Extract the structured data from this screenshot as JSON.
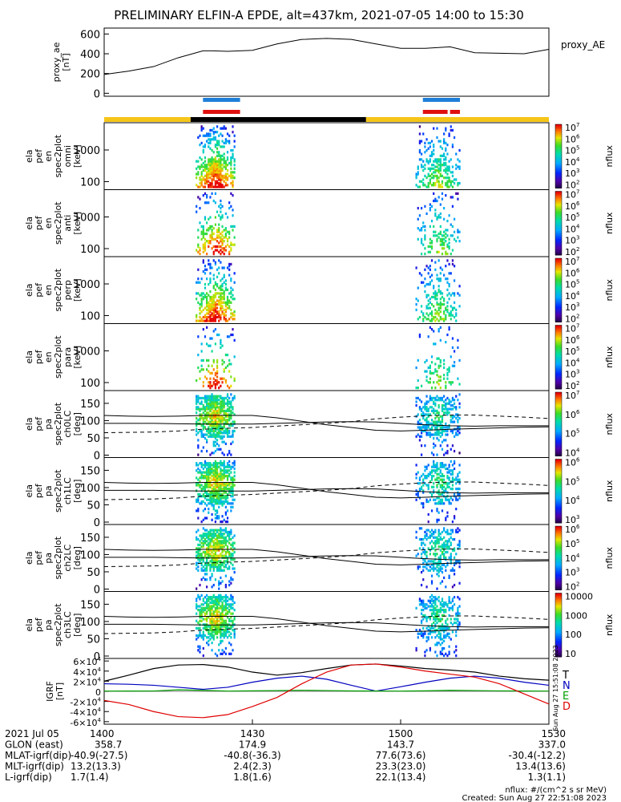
{
  "title": "PRELIMINARY ELFIN-A EPDE, alt=437km, 2021-07-05 14:00 to 15:30",
  "colors": {
    "sunlit": "#f5c518",
    "shadow": "#000000",
    "science_blue": "#1e7fd8",
    "science_red": "#e01010",
    "bx": "#e00000",
    "by": "#00a000",
    "bz": "#0000c0",
    "bt": "#000000"
  },
  "chart_data": [
    {
      "id": "proxy_ae",
      "type": "line",
      "ylabel": "proxy_ae\n[nT]",
      "yticks": [
        "0",
        "200",
        "400",
        "600"
      ],
      "ylim": [
        -30,
        660
      ],
      "legend": "proxy_AE",
      "x": [
        0,
        5,
        10,
        15,
        20,
        22,
        25,
        30,
        35,
        40,
        45,
        50,
        55,
        60,
        65,
        70,
        75,
        80,
        85,
        90
      ],
      "y": [
        190,
        225,
        270,
        360,
        430,
        430,
        425,
        435,
        500,
        545,
        555,
        545,
        500,
        455,
        455,
        470,
        410,
        405,
        400,
        445
      ]
    },
    {
      "id": "en_omni",
      "type": "heatmap",
      "axis": "en",
      "ylabel": "ela\npef\nen\nspec2plot\nomni\n[keV]",
      "yticks": [
        "100",
        "1000"
      ],
      "colorbar": {
        "label": "nflux",
        "ticks": [
          "10^2",
          "10^3",
          "10^4",
          "10^5",
          "10^6",
          "10^7"
        ]
      }
    },
    {
      "id": "en_anti",
      "type": "heatmap",
      "axis": "en",
      "ylabel": "ela\npef\nen\nspec2plot\nanti\n[keV]",
      "yticks": [
        "100",
        "1000"
      ],
      "colorbar": {
        "label": "nflux",
        "ticks": [
          "10^2",
          "10^3",
          "10^4",
          "10^5",
          "10^6",
          "10^7"
        ]
      }
    },
    {
      "id": "en_perp",
      "type": "heatmap",
      "axis": "en",
      "ylabel": "ela\npef\nen\nspec2plot\nperp\n[keV]",
      "yticks": [
        "100",
        "1000"
      ],
      "colorbar": {
        "label": "nflux",
        "ticks": [
          "10^2",
          "10^3",
          "10^4",
          "10^5",
          "10^6",
          "10^7"
        ]
      }
    },
    {
      "id": "en_para",
      "type": "heatmap",
      "axis": "en",
      "ylabel": "ela\npef\nen\nspec2plot\npara\n[keV]",
      "yticks": [
        "100",
        "1000"
      ],
      "colorbar": {
        "label": "nflux",
        "ticks": [
          "10^2",
          "10^3",
          "10^4",
          "10^5",
          "10^6",
          "10^7"
        ]
      }
    },
    {
      "id": "pa_ch0",
      "type": "heatmap",
      "axis": "pa",
      "ylabel": "ela\npef\npa\nspec2plot\nch0LC\n[deg]",
      "yticks": [
        "0",
        "50",
        "100",
        "150"
      ],
      "colorbar": {
        "label": "nflux",
        "ticks": [
          "10^4",
          "10^5",
          "10^6",
          "10^7"
        ]
      }
    },
    {
      "id": "pa_ch1",
      "type": "heatmap",
      "axis": "pa",
      "ylabel": "ela\npef\npa\nspec2plot\nch1LC\n[deg]",
      "yticks": [
        "0",
        "50",
        "100",
        "150"
      ],
      "colorbar": {
        "label": "nflux",
        "ticks": [
          "10^3",
          "10^4",
          "10^5",
          "10^6"
        ]
      }
    },
    {
      "id": "pa_ch2",
      "type": "heatmap",
      "axis": "pa",
      "ylabel": "ela\npef\npa\nspec2plot\nch2LC\n[deg]",
      "yticks": [
        "0",
        "50",
        "100",
        "150"
      ],
      "colorbar": {
        "label": "nflux",
        "ticks": [
          "10^2",
          "10^3",
          "10^4",
          "10^5",
          "10^6"
        ]
      }
    },
    {
      "id": "pa_ch3",
      "type": "heatmap",
      "axis": "pa",
      "ylabel": "ela\npef\npa\nspec2plot\nch3LC\n[deg]",
      "yticks": [
        "0",
        "50",
        "100",
        "150"
      ],
      "colorbar": {
        "label": "nflux",
        "ticks": [
          "10",
          "100",
          "1000",
          "10000"
        ]
      }
    },
    {
      "id": "igrf",
      "type": "line",
      "ylabel": "IGRF\n[nT]",
      "yticks": [
        "-6×10^4",
        "-4×10^4",
        "-2×10^4",
        "0",
        "2×10^4",
        "4×10^4",
        "6×10^4"
      ],
      "ylim": [
        -65000,
        65000
      ],
      "legend": [
        "T",
        "N",
        "E",
        "D"
      ],
      "x": [
        0,
        5,
        10,
        15,
        20,
        25,
        30,
        35,
        40,
        45,
        50,
        55,
        60,
        65,
        70,
        75,
        80,
        85,
        90
      ],
      "series": [
        {
          "name": "T",
          "values": [
            20000,
            32000,
            45000,
            52000,
            53000,
            48000,
            38000,
            32000,
            37000,
            45000,
            52000,
            54000,
            50000,
            45000,
            42000,
            38000,
            30000,
            25000,
            22000
          ]
        },
        {
          "name": "N",
          "values": [
            15000,
            14000,
            12000,
            8000,
            4000,
            8000,
            18000,
            26000,
            30000,
            24000,
            12000,
            500,
            9000,
            18000,
            26000,
            30000,
            26000,
            18000,
            12000
          ]
        },
        {
          "name": "E",
          "values": [
            500,
            600,
            700,
            3000,
            2000,
            500,
            1000,
            1500,
            2000,
            1500,
            800,
            600,
            500,
            1000,
            2000,
            1500,
            900,
            600,
            500
          ]
        },
        {
          "name": "D",
          "values": [
            -18000,
            -26000,
            -40000,
            -50000,
            -52000,
            -46000,
            -30000,
            -12000,
            15000,
            38000,
            52000,
            54000,
            48000,
            40000,
            34000,
            28000,
            15000,
            -5000,
            -25000
          ]
        }
      ]
    }
  ],
  "pa_lines": {
    "solid": [
      115,
      113,
      112,
      113,
      115,
      115,
      115,
      108,
      98,
      88,
      80,
      72,
      70,
      72,
      75,
      77,
      79,
      81,
      82
    ],
    "solid2": [
      92,
      92,
      92,
      91,
      90,
      90,
      90,
      92,
      94,
      96,
      97,
      96,
      92,
      88,
      85,
      84,
      85,
      85,
      85
    ],
    "dashed": [
      65,
      66,
      67,
      70,
      75,
      78,
      80,
      84,
      88,
      92,
      97,
      105,
      110,
      114,
      116,
      116,
      113,
      110,
      106
    ]
  },
  "x_axis": {
    "labels": [
      "1400",
      "1430",
      "1500",
      "1530"
    ],
    "rows": [
      {
        "name": "2021 Jul 05",
        "values": [
          "1400",
          "1430",
          "1500",
          "1530"
        ]
      },
      {
        "name": "GLON (east)",
        "values": [
          "358.7",
          "174.9",
          "143.7",
          "337.0"
        ]
      },
      {
        "name": "MLAT-igrf(dip)",
        "values": [
          "-40.9(-27.5)",
          "-40.8(-36.3)",
          "77.6(73.6)",
          "-30.4(-12.2)"
        ]
      },
      {
        "name": "MLT-igrf(dip)",
        "values": [
          "13.2(13.3)",
          "2.4(2.3)",
          "23.3(23.0)",
          "13.4(13.6)"
        ]
      },
      {
        "name": "L-igrf(dip)",
        "values": [
          "1.7(1.4)",
          "1.8(1.6)",
          "22.1(13.4)",
          "1.3(1.1)"
        ]
      }
    ]
  },
  "footer": {
    "units": "nflux: #/(cm^2 s sr MeV)",
    "created": "Created: Sun Aug 27 22:51:08 2023",
    "side_stamp": "Sun Aug 27 15:51:08 2023"
  }
}
